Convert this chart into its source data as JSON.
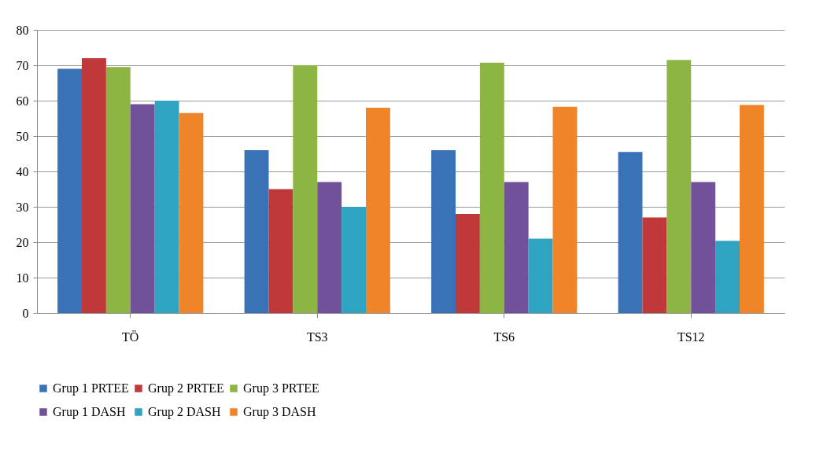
{
  "chart_data": {
    "type": "bar",
    "categories": [
      "TÖ",
      "TS3",
      "TS6",
      "TS12"
    ],
    "series": [
      {
        "name": "Grup 1 PRTEE",
        "color": "#3a72b8",
        "values": [
          69,
          46,
          46,
          45.5
        ]
      },
      {
        "name": "Grup 2 PRTEE",
        "color": "#c0393a",
        "values": [
          72,
          35,
          28,
          27
        ]
      },
      {
        "name": "Grup 3 PRTEE",
        "color": "#8db543",
        "values": [
          69.5,
          70,
          70.7,
          71.5
        ]
      },
      {
        "name": "Grup 1 DASH",
        "color": "#71519a",
        "values": [
          59,
          37,
          37,
          37
        ]
      },
      {
        "name": "Grup 2 DASH",
        "color": "#2fa3c2",
        "values": [
          60,
          30,
          21,
          20.4
        ]
      },
      {
        "name": "Grup 3 DASH",
        "color": "#f08428",
        "values": [
          56.5,
          58,
          58.3,
          58.8
        ]
      }
    ],
    "ylim": [
      0,
      80
    ],
    "yticks": [
      0,
      10,
      20,
      30,
      40,
      50,
      60,
      70,
      80
    ],
    "grid": "y",
    "legend": "bottom"
  }
}
